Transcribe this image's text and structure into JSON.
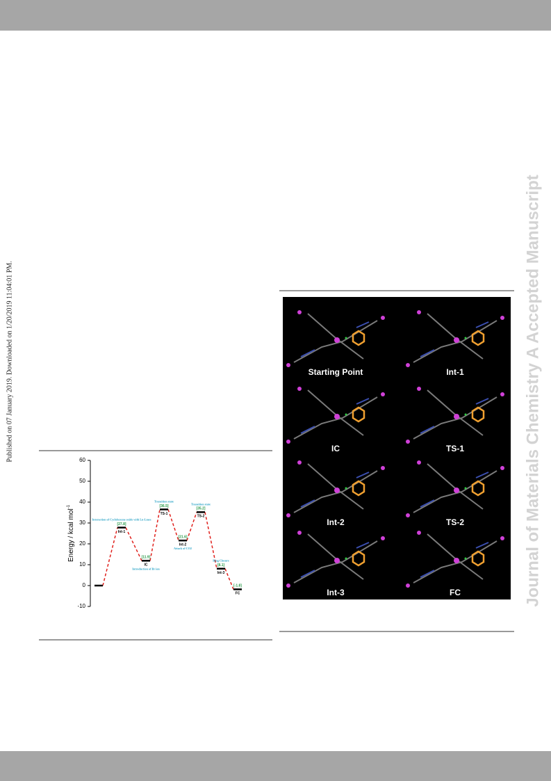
{
  "side_note": "Published on 07 January 2019. Downloaded on 1/20/2019 11:04:01 PM.",
  "watermark": "Journal of Materials Chemistry A Accepted Manuscript",
  "chart_data": {
    "type": "line",
    "ylabel": "Energy / kcal mol",
    "ylabel_superscript": "-1",
    "categories": [
      null,
      "Int-1",
      "IC",
      "TS-1",
      "Int-2",
      "TS-2",
      "Int-3",
      "FC"
    ],
    "values": [
      0,
      27.8,
      11.9,
      36.5,
      21.6,
      35.2,
      8.1,
      -1.8
    ],
    "value_labels": [
      null,
      "[27.8]",
      "[11.9]",
      "[36.5]",
      "[21.6]",
      "[35.2]",
      "[8.1]",
      "[-1.8]"
    ],
    "annotations": [
      null,
      "Interaction of Cyclohexene oxide with Ln-Lmes",
      "Introduction of Br ion",
      "Transition state",
      "Attack of CO2",
      "Transition state",
      "Ring Closure",
      null
    ],
    "color": "#e0201c",
    "level_color": "#000000",
    "value_label_color": "#2a9a4a",
    "annotation_color": "#29a3c6",
    "ylim": [
      -10,
      60
    ],
    "yticks": [
      -10,
      0,
      10,
      20,
      30,
      40,
      50,
      60
    ]
  },
  "figure": {
    "captions": [
      "Starting Point",
      "Int-1",
      "IC",
      "TS-1",
      "Int-2",
      "TS-2",
      "Int-3",
      "FC"
    ]
  }
}
